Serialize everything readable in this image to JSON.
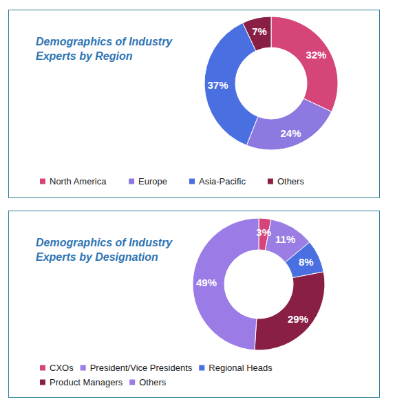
{
  "chart_data": [
    {
      "type": "pie",
      "title": "Demographics of Industry Experts by Region",
      "categories": [
        "North America",
        "Europe",
        "Asia-Pacific",
        "Others"
      ],
      "values": [
        32,
        24,
        37,
        7
      ],
      "value_labels": [
        "32%",
        "24%",
        "37%",
        "7%"
      ],
      "colors": [
        "#d6457a",
        "#8e79e0",
        "#4a6fe0",
        "#8a1f45"
      ],
      "data_labels": true,
      "legend": "bottom"
    },
    {
      "type": "pie",
      "title": "Demographics of Industry Experts by Designation",
      "categories": [
        "CXOs",
        "President/Vice Presidents",
        "Regional Heads",
        "Product Managers",
        "Others"
      ],
      "values": [
        3,
        11,
        8,
        29,
        49
      ],
      "value_labels": [
        "3%",
        "11%",
        "8%",
        "29%",
        "49%"
      ],
      "colors": [
        "#d6457a",
        "#9a7ee3",
        "#4a6fe0",
        "#8a1f45",
        "#9b7be6"
      ],
      "data_labels": true,
      "legend": "bottom"
    }
  ]
}
